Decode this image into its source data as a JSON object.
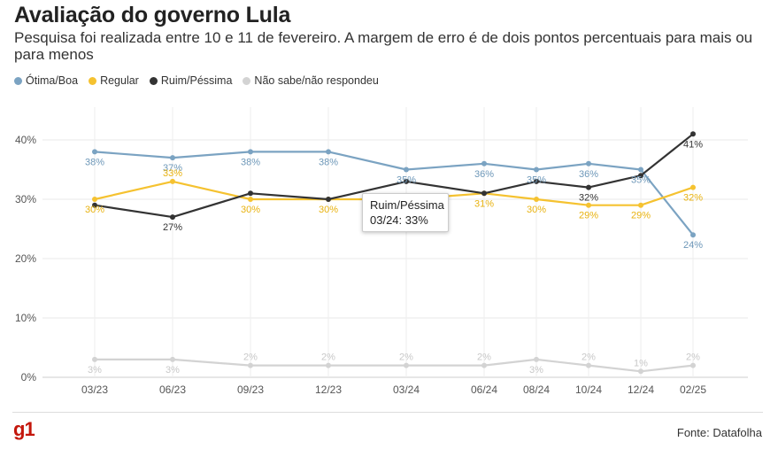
{
  "header": {
    "title": "Avaliação do governo Lula",
    "subtitle": "Pesquisa foi realizada entre 10 e 11 de fevereiro. A margem de erro é de dois pontos percentuais para mais ou para menos"
  },
  "footer": {
    "logo": "g1",
    "source": "Fonte: Datafolha"
  },
  "tooltip": {
    "series": "Ruim/Péssima",
    "value": "03/24: 33%"
  },
  "chart_data": {
    "type": "line",
    "categories": [
      "03/23",
      "06/23",
      "09/23",
      "12/23",
      "03/24",
      "06/24",
      "08/24",
      "10/24",
      "12/24",
      "02/25"
    ],
    "y_ticks": [
      "0%",
      "10%",
      "20%",
      "30%",
      "40%"
    ],
    "ylim": [
      0,
      45
    ],
    "grid": true,
    "legend_position": "top-left",
    "series": [
      {
        "name": "Ótima/Boa",
        "color": "#7ba3c2",
        "values": [
          38,
          37,
          38,
          38,
          35,
          36,
          35,
          36,
          35,
          24
        ]
      },
      {
        "name": "Regular",
        "color": "#f5c230",
        "values": [
          30,
          33,
          30,
          30,
          30,
          31,
          30,
          29,
          29,
          32
        ]
      },
      {
        "name": "Ruim/Péssima",
        "color": "#333333",
        "values": [
          29,
          27,
          31,
          30,
          33,
          31,
          33,
          32,
          34,
          41
        ]
      },
      {
        "name": "Não sabe/não respondeu",
        "color": "#d3d3d3",
        "values": [
          3,
          3,
          2,
          2,
          2,
          2,
          3,
          2,
          1,
          2
        ]
      }
    ],
    "data_labels": [
      {
        "series": 0,
        "labels": [
          "38%",
          "37%",
          "38%",
          "38%",
          "35%",
          "36%",
          "35%",
          "36%",
          "35%",
          "24%"
        ]
      },
      {
        "series": 1,
        "labels": [
          "30%",
          "33%",
          "30%",
          "30%",
          "",
          "31%",
          "30%",
          "29%",
          "29%",
          "32%"
        ]
      },
      {
        "series": 2,
        "labels": [
          "",
          "27%",
          "",
          "",
          "",
          "",
          "",
          "32%",
          "",
          "41%"
        ]
      },
      {
        "series": 3,
        "labels": [
          "3%",
          "3%",
          "2%",
          "2%",
          "2%",
          "2%",
          "3%",
          "2%",
          "1%",
          "2%"
        ]
      }
    ]
  }
}
